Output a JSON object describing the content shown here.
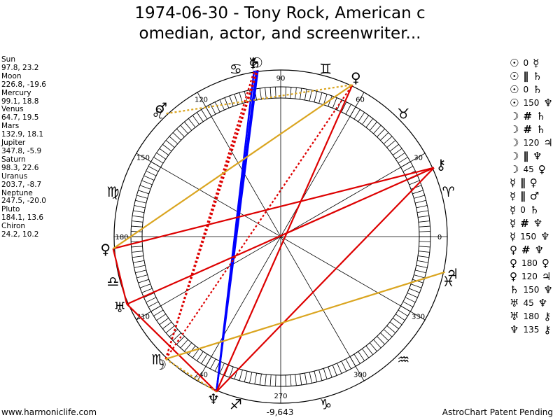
{
  "title_line1": "1974-06-30 - Tony Rock, American c",
  "title_line2": "omedian, actor, and screenwriter...",
  "planets": [
    {
      "name": "Sun",
      "pos": "97.8, 23.2"
    },
    {
      "name": "Moon",
      "pos": "226.8, -19.6"
    },
    {
      "name": "Mercury",
      "pos": "99.1, 18.8"
    },
    {
      "name": "Venus",
      "pos": "64.7, 19.5"
    },
    {
      "name": "Mars",
      "pos": "132.9, 18.1"
    },
    {
      "name": "Jupiter",
      "pos": "347.8, -5.9"
    },
    {
      "name": "Saturn",
      "pos": "98.3, 22.6"
    },
    {
      "name": "Uranus",
      "pos": "203.7, -8.7"
    },
    {
      "name": "Neptune",
      "pos": "247.5, -20.0"
    },
    {
      "name": "Pluto",
      "pos": "184.1, 13.6"
    },
    {
      "name": "Chiron",
      "pos": "24.2, 10.2"
    }
  ],
  "aspects": [
    {
      "p1": "☉",
      "sym": "0",
      "p2": "☿"
    },
    {
      "p1": "☉",
      "sym": "∥",
      "p2": "♄"
    },
    {
      "p1": "☉",
      "sym": "0",
      "p2": "♄"
    },
    {
      "p1": "☉",
      "sym": "150",
      "p2": "♆"
    },
    {
      "p1": "☽",
      "sym": "#",
      "p2": "♄"
    },
    {
      "p1": "☽",
      "sym": "#",
      "p2": "♄"
    },
    {
      "p1": "☽",
      "sym": "120",
      "p2": "♃"
    },
    {
      "p1": "☽",
      "sym": "∥",
      "p2": "♆"
    },
    {
      "p1": "☽",
      "sym": "45",
      "p2": "♀"
    },
    {
      "p1": "☿",
      "sym": "∥",
      "p2": "♀"
    },
    {
      "p1": "☿",
      "sym": "∥",
      "p2": "♂"
    },
    {
      "p1": "☿",
      "sym": "0",
      "p2": "♄"
    },
    {
      "p1": "☿",
      "sym": "#",
      "p2": "♆"
    },
    {
      "p1": "☿",
      "sym": "150",
      "p2": "♆"
    },
    {
      "p1": "♀",
      "sym": "#",
      "p2": "♆"
    },
    {
      "p1": "♀",
      "sym": "180",
      "p2": "♀"
    },
    {
      "p1": "♀",
      "sym": "120",
      "p2": "♃"
    },
    {
      "p1": "♄",
      "sym": "150",
      "p2": "♆"
    },
    {
      "p1": "♅",
      "sym": "45",
      "p2": "♆"
    },
    {
      "p1": "♅",
      "sym": "180",
      "p2": "⚷"
    },
    {
      "p1": "♆",
      "sym": "135",
      "p2": "⚷"
    }
  ],
  "wheel": {
    "degree_labels": [
      "0",
      "30",
      "60",
      "90",
      "120",
      "150",
      "180",
      "210",
      "240",
      "270",
      "300",
      "330"
    ],
    "sign_glyphs": [
      "♈",
      "♉",
      "♊",
      "♋",
      "♌",
      "♍",
      "♎",
      "♏",
      "♐",
      "♑",
      "♒",
      "♓"
    ],
    "planet_glyphs": [
      {
        "glyph": "☉",
        "lon": 97.8,
        "color": "#000000"
      },
      {
        "glyph": "☽",
        "lon": 226.8,
        "color": "#000000"
      },
      {
        "glyph": "☿",
        "lon": 99.1,
        "color": "#000000"
      },
      {
        "glyph": "♀",
        "lon": 64.7,
        "color": "#000000"
      },
      {
        "glyph": "♂",
        "lon": 132.9,
        "color": "#000000"
      },
      {
        "glyph": "♃",
        "lon": 347.8,
        "color": "#000000"
      },
      {
        "glyph": "♄",
        "lon": 98.3,
        "color": "#000000"
      },
      {
        "glyph": "♅",
        "lon": 203.7,
        "color": "#000000"
      },
      {
        "glyph": "♆",
        "lon": 247.5,
        "color": "#000000"
      },
      {
        "glyph": "♀",
        "lon": 184.1,
        "color": "#000000"
      },
      {
        "glyph": "⚷",
        "lon": 24.2,
        "color": "#000000"
      }
    ],
    "aspect_lines": [
      {
        "a": 97.8,
        "b": 247.5,
        "color": "#0000ff",
        "style": "solid"
      },
      {
        "a": 99.1,
        "b": 247.5,
        "color": "#0000ff",
        "style": "solid"
      },
      {
        "a": 98.3,
        "b": 247.5,
        "color": "#0000ff",
        "style": "solid"
      },
      {
        "a": 64.7,
        "b": 247.5,
        "color": "#dd0000",
        "style": "solid"
      },
      {
        "a": 24.2,
        "b": 184.1,
        "color": "#dd0000",
        "style": "solid"
      },
      {
        "a": 24.2,
        "b": 247.5,
        "color": "#dd0000",
        "style": "solid"
      },
      {
        "a": 24.2,
        "b": 203.7,
        "color": "#dd0000",
        "style": "solid"
      },
      {
        "a": 184.1,
        "b": 203.7,
        "color": "#dd0000",
        "style": "solid"
      },
      {
        "a": 203.7,
        "b": 247.5,
        "color": "#dd0000",
        "style": "solid"
      },
      {
        "a": 226.8,
        "b": 64.7,
        "color": "#dd0000",
        "style": "dotted"
      },
      {
        "a": 226.8,
        "b": 97.8,
        "color": "#dd0000",
        "style": "dotted"
      },
      {
        "a": 226.8,
        "b": 98.3,
        "color": "#dd0000",
        "style": "dotted"
      },
      {
        "a": 226.8,
        "b": 99.1,
        "color": "#dd0000",
        "style": "dotted"
      },
      {
        "a": 64.7,
        "b": 184.1,
        "color": "#daa520",
        "style": "solid"
      },
      {
        "a": 347.8,
        "b": 226.8,
        "color": "#daa520",
        "style": "solid"
      },
      {
        "a": 132.9,
        "b": 64.7,
        "color": "#daa520",
        "style": "dotted"
      },
      {
        "a": 226.8,
        "b": 247.5,
        "color": "#daa520",
        "style": "dotted"
      }
    ]
  },
  "bottom_value": "-9,643",
  "footer_left": "www.harmoniclife.com",
  "footer_right": "AstroChart Patent Pending"
}
